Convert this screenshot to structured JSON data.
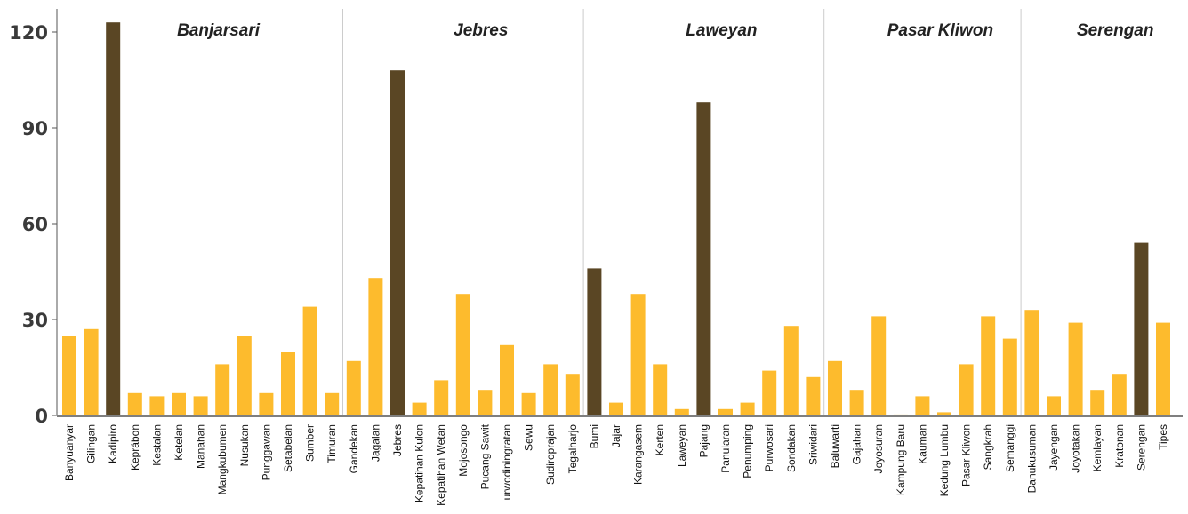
{
  "chart_data": {
    "type": "bar",
    "title": "",
    "xlabel": "",
    "ylabel": "",
    "ylim": [
      0,
      125
    ],
    "yticks": [
      0,
      30,
      60,
      90,
      120
    ],
    "grid": false,
    "colors": {
      "normal": "#FDBB2D",
      "highlight": "#5A4624"
    },
    "groups": [
      {
        "name": "Banjarsari",
        "categories": [
          "Banyuanyar",
          "Gilingan",
          "Kadipiro",
          "Keprábon",
          "Kestalan",
          "Ketelan",
          "Manahan",
          "Mangkubumen",
          "Nusukan",
          "Punggawan",
          "Setabelan",
          "Sumber",
          "Timuran"
        ],
        "values": [
          25,
          27,
          123,
          7,
          6,
          7,
          6,
          16,
          25,
          7,
          20,
          34,
          7
        ],
        "highlight": [
          false,
          false,
          true,
          false,
          false,
          false,
          false,
          false,
          false,
          false,
          false,
          false,
          false
        ]
      },
      {
        "name": "Jebres",
        "categories": [
          "Gandekan",
          "Jagalan",
          "Jebres",
          "Kepatihan Kulon",
          "Kepatihan Wetan",
          "Mojosongo",
          "Pucang Sawit",
          "urwodiningratan",
          "Sewu",
          "Sudiroprajan",
          "Tegalharjo"
        ],
        "values": [
          17,
          43,
          108,
          4,
          11,
          38,
          8,
          22,
          7,
          16,
          13
        ],
        "highlight": [
          false,
          false,
          true,
          false,
          false,
          false,
          false,
          false,
          false,
          false,
          false
        ]
      },
      {
        "name": "Laweyan",
        "categories": [
          "Bumi",
          "Jajar",
          "Karangasem",
          "Kerten",
          "Laweyan",
          "Pajang",
          "Panularan",
          "Penumping",
          "Purwosari",
          "Sondakan",
          "Sriwidari"
        ],
        "values": [
          46,
          4,
          38,
          16,
          2,
          98,
          2,
          4,
          14,
          28,
          12
        ],
        "highlight": [
          true,
          false,
          false,
          false,
          false,
          true,
          false,
          false,
          false,
          false,
          false
        ]
      },
      {
        "name": "Pasar Kliwon",
        "categories": [
          "Baluwarti",
          "Gajahan",
          "Joyosuran",
          "Kampung Baru",
          "Kauman",
          "Kedung Lumbu",
          "Pasar Kliwon",
          "Sangkrah",
          "Semanggi"
        ],
        "values": [
          17,
          8,
          31,
          0.3,
          6,
          1,
          16,
          31,
          24
        ],
        "highlight": [
          false,
          false,
          false,
          false,
          false,
          false,
          false,
          false,
          false
        ]
      },
      {
        "name": "Serengan",
        "categories": [
          "Danukusuman",
          "Jayengan",
          "Joyotakan",
          "Kemlayan",
          "Kratonan",
          "Serengan",
          "Tipes"
        ],
        "values": [
          33,
          6,
          29,
          8,
          13,
          54,
          29
        ],
        "highlight": [
          false,
          false,
          false,
          false,
          false,
          true,
          false
        ]
      }
    ]
  }
}
